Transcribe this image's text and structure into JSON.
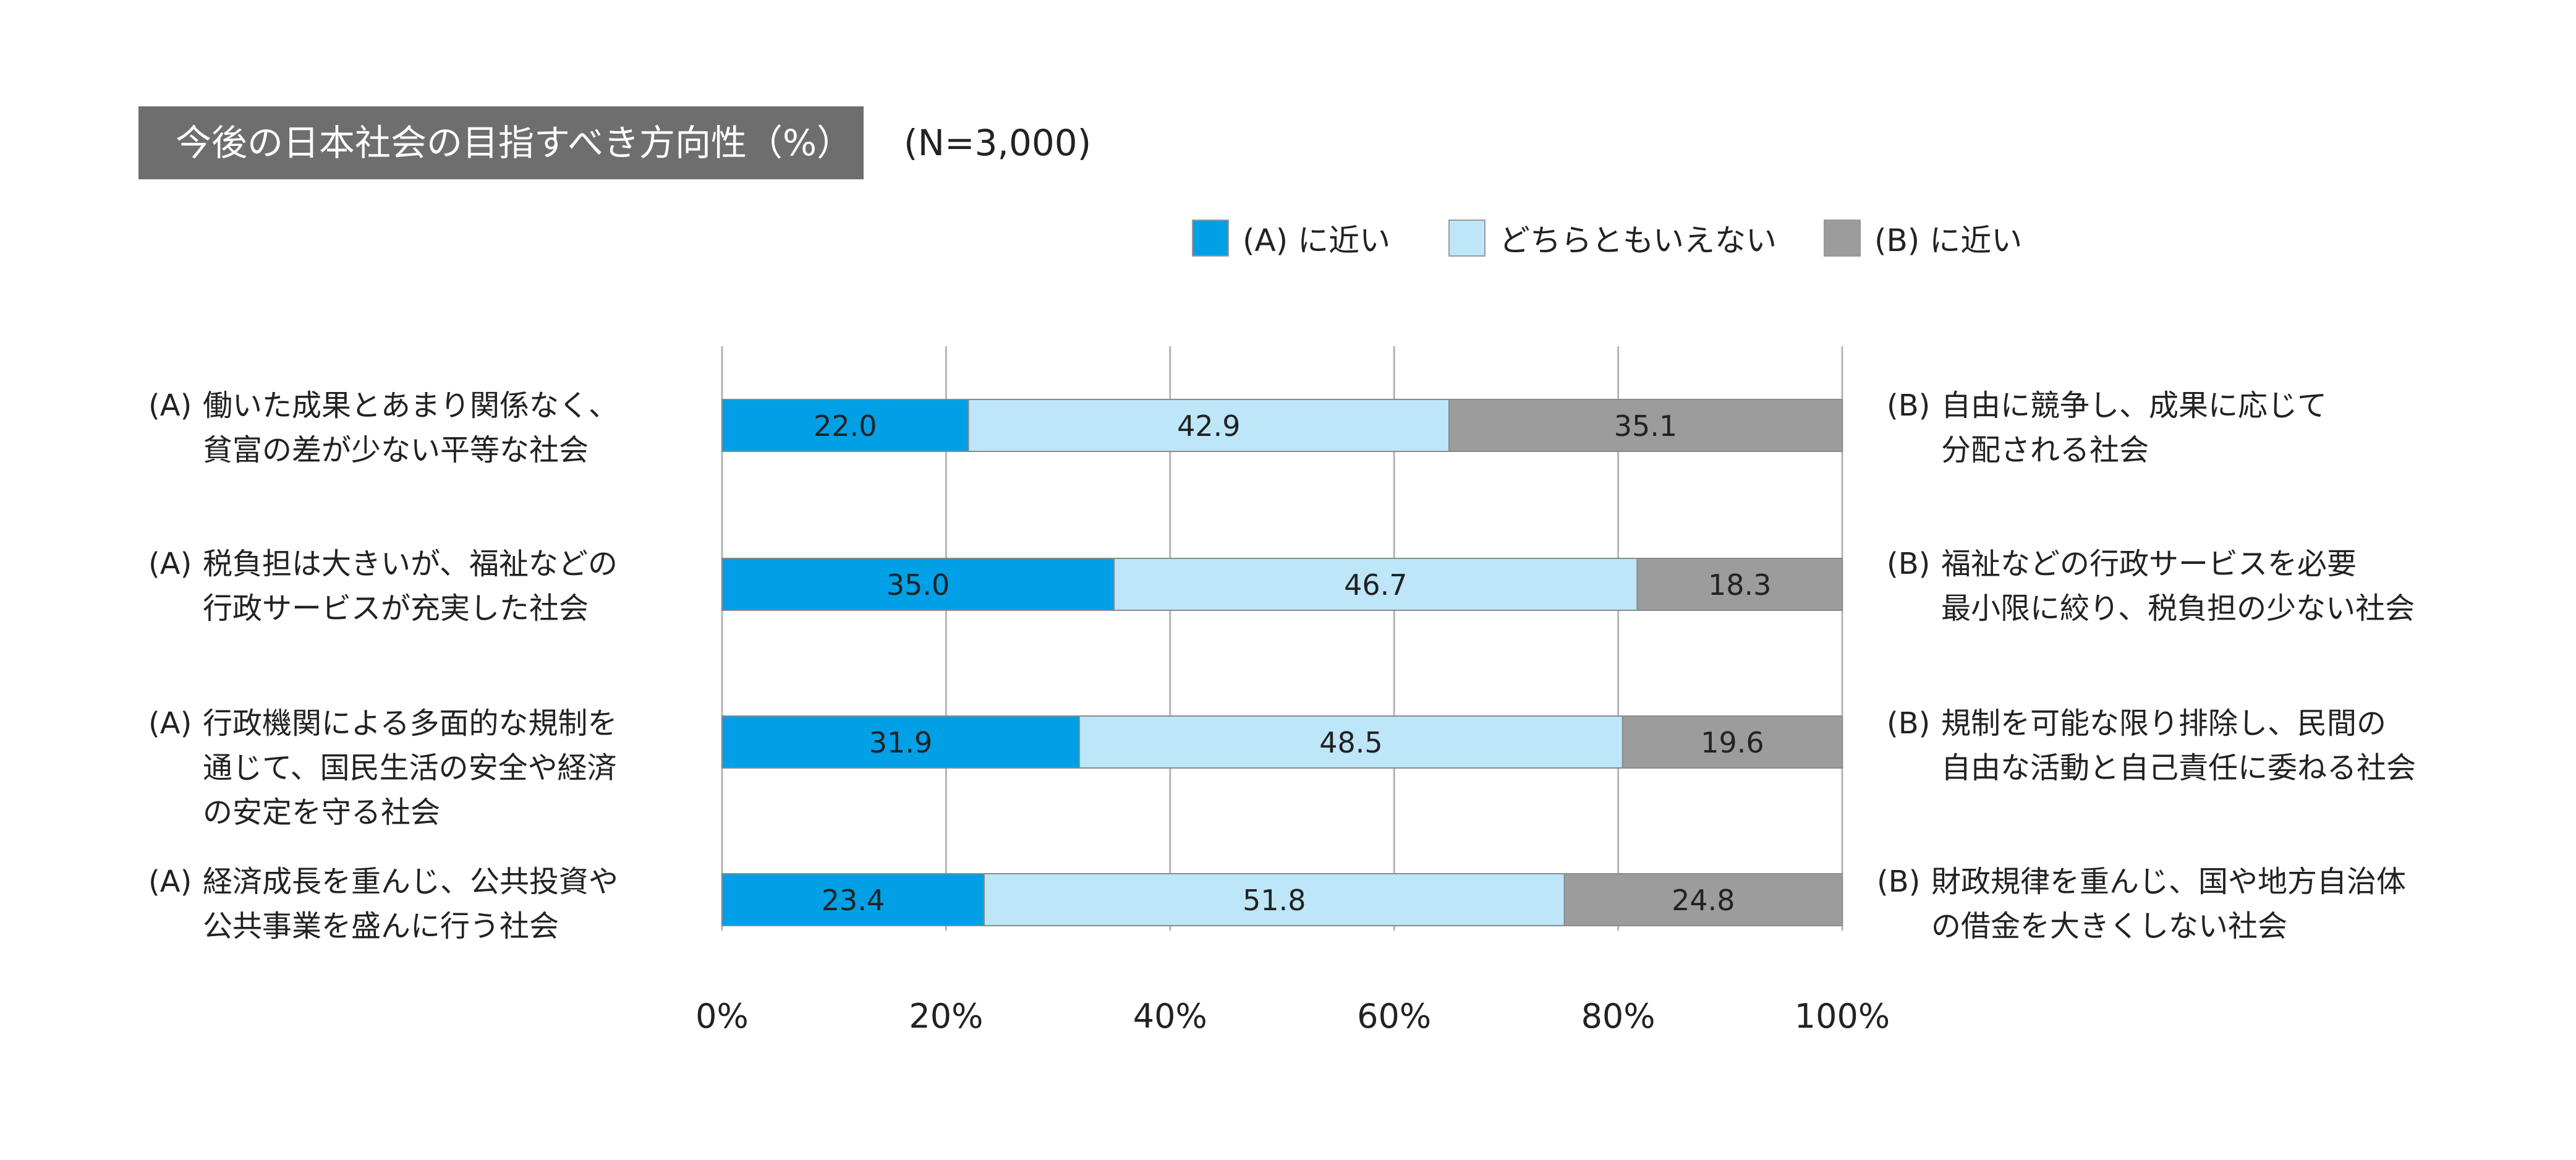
{
  "title": "今後の日本社会の目指すべき方向性（%）",
  "sample_size": "(N=3,000)",
  "colors": {
    "title_bg": "#6e6e6e",
    "series_a": "#00a0e6",
    "series_neutral": "#bde6f8",
    "series_b": "#9c9c9c",
    "grid": "#b4b4b4"
  },
  "chart_data": {
    "type": "bar",
    "orientation": "horizontal",
    "stacked": true,
    "title": "今後の日本社会の目指すべき方向性（%）",
    "xlim": [
      0,
      100
    ],
    "x_ticks": [
      "0%",
      "20%",
      "40%",
      "60%",
      "80%",
      "100%"
    ],
    "grid": true,
    "legend_position": "top-right",
    "categories": [
      {
        "a_prefix": "(A)",
        "a_lines": [
          "働いた成果とあまり関係なく、",
          "貧富の差が少ない平等な社会"
        ],
        "b_prefix": "(B)",
        "b_lines": [
          "自由に競争し、成果に応じて",
          "分配される社会"
        ]
      },
      {
        "a_prefix": "(A)",
        "a_lines": [
          "税負担は大きいが、福祉などの",
          "行政サービスが充実した社会"
        ],
        "b_prefix": "(B)",
        "b_lines": [
          "福祉などの行政サービスを必要",
          "最小限に絞り、税負担の少ない社会"
        ]
      },
      {
        "a_prefix": "(A)",
        "a_lines": [
          "行政機関による多面的な規制を",
          "通じて、国民生活の安全や経済",
          "の安定を守る社会"
        ],
        "b_prefix": "(B)",
        "b_lines": [
          "規制を可能な限り排除し、民間の",
          "自由な活動と自己責任に委ねる社会"
        ]
      },
      {
        "a_prefix": "(A)",
        "a_lines": [
          "経済成長を重んじ、公共投資や",
          "公共事業を盛んに行う社会"
        ],
        "b_prefix": "(B)",
        "b_lines": [
          "財政規律を重んじ、国や地方自治体",
          "の借金を大きくしない社会"
        ]
      }
    ],
    "series": [
      {
        "name": "(A) に近い",
        "color": "#00a0e6",
        "values": [
          22.0,
          35.0,
          31.9,
          23.4
        ],
        "labels": [
          "22.0",
          "35.0",
          "31.9",
          "23.4"
        ]
      },
      {
        "name": "どちらともいえない",
        "color": "#bde6f8",
        "values": [
          42.9,
          46.7,
          48.5,
          51.8
        ],
        "labels": [
          "42.9",
          "46.7",
          "48.5",
          "51.8"
        ]
      },
      {
        "name": "(B) に近い",
        "color": "#9c9c9c",
        "values": [
          35.1,
          18.3,
          19.6,
          24.8
        ],
        "labels": [
          "35.1",
          "18.3",
          "19.6",
          "24.8"
        ]
      }
    ]
  }
}
